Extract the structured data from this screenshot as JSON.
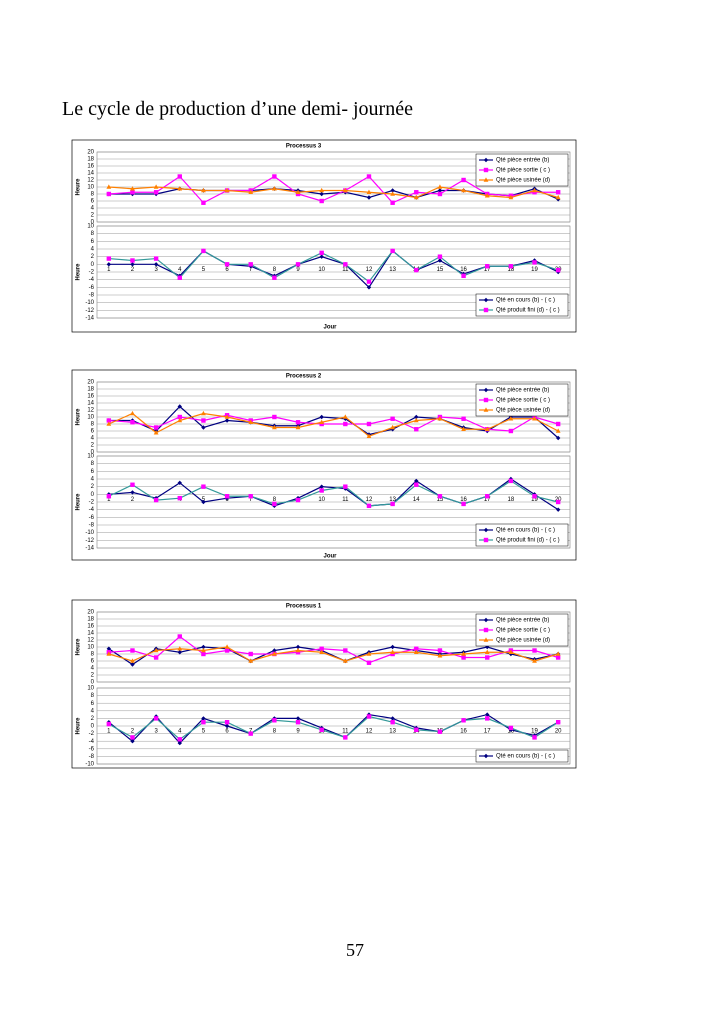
{
  "title": "Le cycle de production d’une demi- journée",
  "page_number": "57",
  "chart_data": [
    {
      "type": "line",
      "title": "Processus 3",
      "ylabel": "Heure",
      "categories": [
        null,
        null,
        null,
        null,
        null,
        null,
        null,
        null,
        null,
        null,
        null,
        null,
        null,
        null,
        null,
        null,
        null,
        null,
        null,
        null
      ],
      "ylim": [
        0,
        20
      ],
      "yticks": [
        0,
        2,
        4,
        6,
        8,
        10,
        12,
        14,
        16,
        18,
        20
      ],
      "grid": true,
      "legend": "upper right",
      "series": [
        {
          "name": "Qté pièce entrée (b)",
          "color": "#000080",
          "marker": "diamond",
          "values": [
            8,
            8,
            8,
            9.5,
            9,
            9,
            9,
            9.5,
            9,
            8,
            8.5,
            7,
            9,
            7,
            9,
            9,
            8,
            7.5,
            9.5,
            6.5
          ]
        },
        {
          "name": "Qté pièce sortie ( c )",
          "color": "#ff00ff",
          "marker": "square",
          "values": [
            8,
            8.5,
            8.5,
            13,
            5.5,
            9,
            9,
            13,
            8,
            6,
            9,
            13,
            5.5,
            8.5,
            8,
            12,
            8,
            7.5,
            8.5,
            8.5
          ]
        },
        {
          "name": "Qté pièce usinée (d)",
          "color": "#ff8000",
          "marker": "triangle",
          "values": [
            10,
            9.5,
            10,
            9.5,
            9,
            9,
            8.5,
            9.5,
            8.5,
            9,
            9,
            8.5,
            8,
            7,
            10,
            9,
            7.5,
            7,
            9,
            7
          ]
        }
      ]
    },
    {
      "type": "line",
      "ylabel": "Heure",
      "xlabel": "Jour",
      "categories": [
        "1",
        "2",
        "3",
        "4",
        "5",
        "6",
        "7",
        "8",
        "9",
        "10",
        "11",
        "12",
        "13",
        "14",
        "15",
        "16",
        "17",
        "18",
        "19",
        "20"
      ],
      "ylim": [
        -14,
        10
      ],
      "yticks": [
        -14,
        -12,
        -10,
        -8,
        -6,
        -4,
        -2,
        0,
        2,
        4,
        6,
        8,
        10
      ],
      "grid": true,
      "legend": "lower right",
      "series": [
        {
          "name": "Qté en cours (b) - ( c )",
          "color": "#000080",
          "marker": "diamond",
          "values": [
            0,
            0,
            0,
            -3,
            3.5,
            0,
            -0.5,
            -3,
            0,
            2,
            0,
            -6,
            3.5,
            -1.5,
            1,
            -2.5,
            -0.5,
            -0.5,
            1,
            -2
          ]
        },
        {
          "name": "Qté produit fini (d) - ( c )",
          "color": "#ff00ff",
          "line_color": "#339999",
          "marker": "square",
          "values": [
            1.5,
            1,
            1.5,
            -3.5,
            3.5,
            0,
            0,
            -3.5,
            0,
            3,
            0,
            -4.5,
            3.5,
            -1.5,
            2,
            -3,
            -0.5,
            -0.5,
            0.5,
            -1.5
          ]
        }
      ]
    },
    {
      "type": "line",
      "title": "Processus 2",
      "ylabel": "Heure",
      "categories": [
        null,
        null,
        null,
        null,
        null,
        null,
        null,
        null,
        null,
        null,
        null,
        null,
        null,
        null,
        null,
        null,
        null,
        null,
        null,
        null
      ],
      "ylim": [
        0,
        20
      ],
      "yticks": [
        0,
        2,
        4,
        6,
        8,
        10,
        12,
        14,
        16,
        18,
        20
      ],
      "grid": true,
      "legend": "upper right",
      "series": [
        {
          "name": "Qté pièce entrée (b)",
          "color": "#000080",
          "marker": "diamond",
          "values": [
            9,
            9,
            6,
            13,
            7,
            9,
            8.5,
            7.5,
            7.5,
            10,
            9.5,
            5,
            6.5,
            10,
            9.5,
            7,
            6,
            10,
            10,
            4
          ]
        },
        {
          "name": "Qté pièce sortie ( c )",
          "color": "#ff00ff",
          "marker": "square",
          "values": [
            9,
            8.5,
            7,
            10,
            9,
            10.5,
            9,
            10,
            8.5,
            8,
            8,
            8,
            9.5,
            6.5,
            10,
            9.5,
            6.5,
            6,
            10,
            8
          ]
        },
        {
          "name": "Qté pièce usinée (d)",
          "color": "#ff8000",
          "marker": "triangle",
          "values": [
            8,
            11,
            5.5,
            9,
            11,
            10,
            8.5,
            7,
            7,
            8.5,
            10,
            4.5,
            7,
            9,
            9.5,
            6.5,
            6.5,
            9.5,
            9.5,
            6
          ]
        }
      ]
    },
    {
      "type": "line",
      "ylabel": "Heure",
      "xlabel": "Jour",
      "categories": [
        "1",
        "2",
        "3",
        "4",
        "5",
        "6",
        "7",
        "8",
        "9",
        "10",
        "11",
        "12",
        "13",
        "14",
        "15",
        "16",
        "17",
        "18",
        "19",
        "20"
      ],
      "ylim": [
        -14,
        10
      ],
      "yticks": [
        -14,
        -12,
        -10,
        -8,
        -6,
        -4,
        -2,
        0,
        2,
        4,
        6,
        8,
        10
      ],
      "grid": true,
      "legend": "lower right",
      "series": [
        {
          "name": "Qté en cours (b) - ( c )",
          "color": "#000080",
          "marker": "diamond",
          "values": [
            0,
            0.5,
            -1,
            3,
            -2,
            -1,
            -0.5,
            -3,
            -1,
            2,
            1.5,
            -3,
            -2.5,
            3.5,
            -0.5,
            -2.5,
            -0.5,
            4,
            0,
            -4
          ]
        },
        {
          "name": "Qté produit fini (d) - ( c )",
          "color": "#ff00ff",
          "line_color": "#339999",
          "marker": "square",
          "values": [
            -0.5,
            2.5,
            -1.5,
            -1,
            2,
            -0.5,
            -0.5,
            -2.5,
            -1.5,
            1,
            2,
            -3,
            -2.5,
            2.5,
            -0.5,
            -2.5,
            -0.5,
            3.5,
            -0.5,
            -2
          ]
        }
      ]
    },
    {
      "type": "line",
      "title": "Processus 1",
      "ylabel": "Heure",
      "categories": [
        null,
        null,
        null,
        null,
        null,
        null,
        null,
        null,
        null,
        null,
        null,
        null,
        null,
        null,
        null,
        null,
        null,
        null,
        null,
        null
      ],
      "ylim": [
        0,
        20
      ],
      "yticks": [
        0,
        2,
        4,
        6,
        8,
        10,
        12,
        14,
        16,
        18,
        20
      ],
      "grid": true,
      "legend": "upper right",
      "series": [
        {
          "name": "Qté pièce entrée (b)",
          "color": "#000080",
          "marker": "diamond",
          "values": [
            9.5,
            5,
            9.5,
            8.5,
            10,
            9.5,
            6,
            9,
            10,
            9,
            6,
            8.5,
            10,
            9,
            8,
            8.5,
            10,
            8,
            6.5,
            8
          ]
        },
        {
          "name": "Qté pièce sortie ( c )",
          "color": "#ff00ff",
          "marker": "square",
          "values": [
            8.5,
            9,
            7,
            13,
            8,
            9,
            8,
            8,
            8.5,
            9.5,
            9,
            5.5,
            8,
            9.5,
            9,
            7,
            7,
            9,
            9,
            7
          ]
        },
        {
          "name": "Qté pièce usinée (d)",
          "color": "#ff8000",
          "marker": "triangle",
          "values": [
            8,
            6,
            9,
            9.5,
            9,
            10,
            6,
            8,
            9,
            8.5,
            6,
            8,
            8.5,
            8.5,
            7.5,
            8,
            8.5,
            8.5,
            6,
            8
          ]
        }
      ]
    },
    {
      "type": "line",
      "ylabel": "Heure",
      "categories": [
        "1",
        "2",
        "3",
        "4",
        "5",
        "6",
        "7",
        "8",
        "9",
        "10",
        "11",
        "12",
        "13",
        "14",
        "15",
        "16",
        "17",
        "18",
        "19",
        "20"
      ],
      "ylim": [
        -10,
        10
      ],
      "yticks": [
        -10,
        -8,
        -6,
        -4,
        -2,
        0,
        2,
        4,
        6,
        8,
        10
      ],
      "grid": true,
      "legend": "lower right",
      "series": [
        {
          "name": "Qté en cours (b) - ( c )",
          "color": "#000080",
          "marker": "diamond",
          "values": [
            1,
            -4,
            2.5,
            -4.5,
            2,
            0,
            -2,
            2,
            2,
            -0.5,
            -3,
            3,
            2,
            -0.5,
            -1.5,
            1.5,
            3,
            -1,
            -2.5,
            1
          ]
        },
        {
          "color": "#ff00ff",
          "line_color": "#339999",
          "marker": "square",
          "values": [
            0.5,
            -3,
            2,
            -3.5,
            1,
            1,
            -2,
            1.5,
            1,
            -1,
            -3,
            2.5,
            1,
            -1,
            -1.5,
            1.5,
            2,
            -0.5,
            -3,
            1
          ]
        }
      ]
    }
  ]
}
